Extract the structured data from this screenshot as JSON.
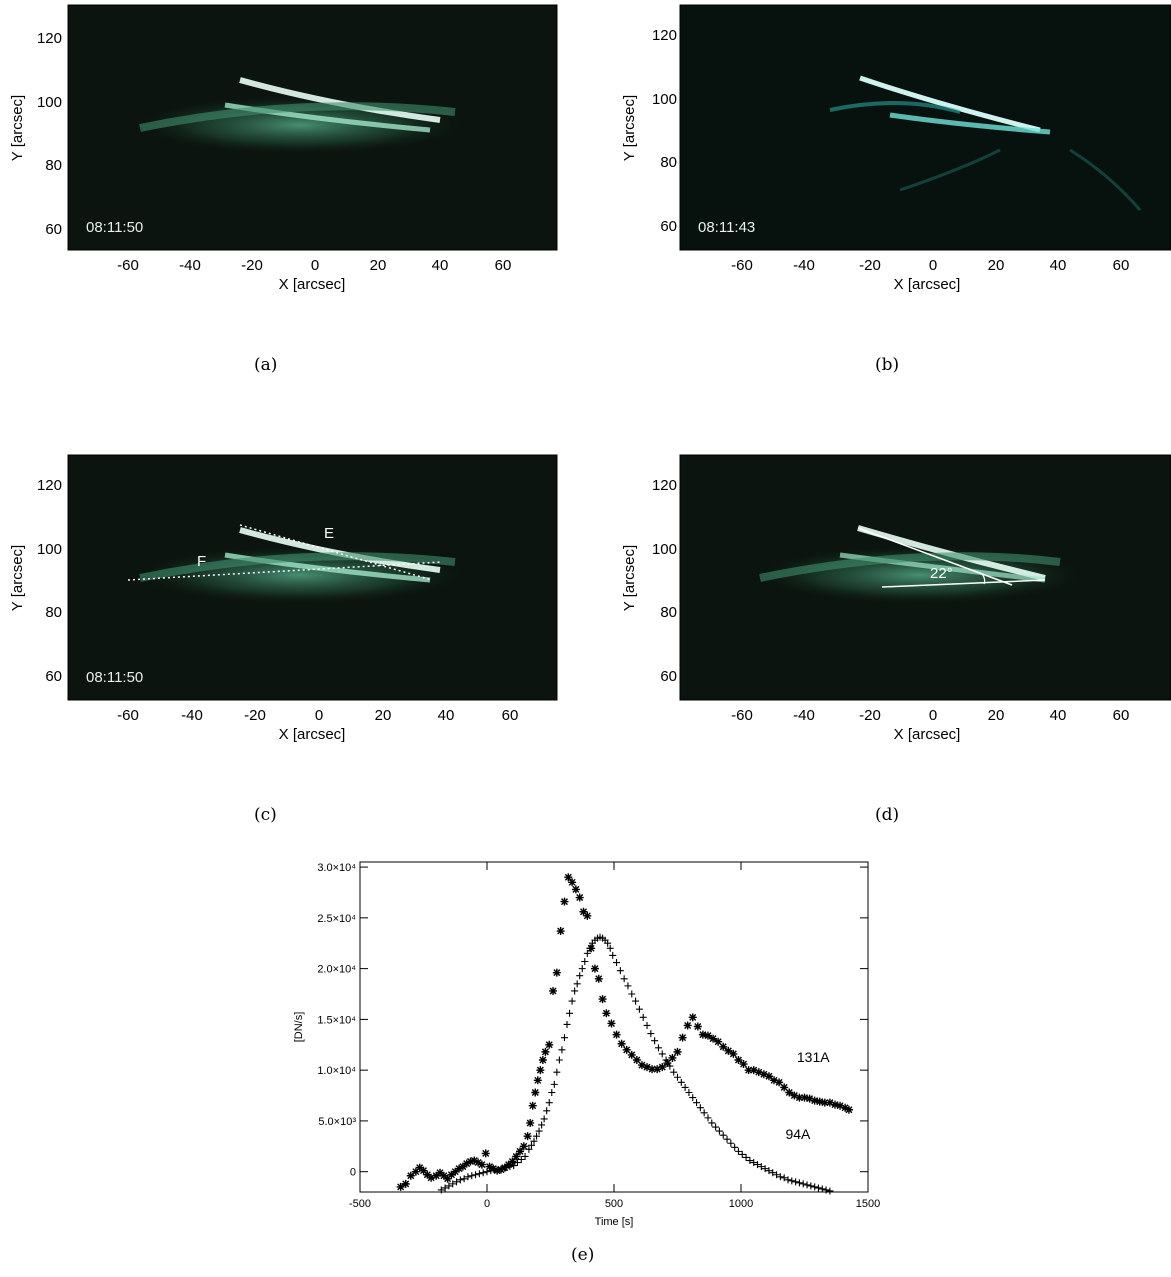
{
  "captions": {
    "a": "(a)",
    "b": "(b)",
    "c": "(c)",
    "d": "(d)",
    "e": "(e)"
  },
  "image_axes": {
    "xlabel": "X [arcsec]",
    "ylabel": "Y [arcsec]",
    "xticks": [
      "-60",
      "-40",
      "-20",
      "0",
      "20",
      "40",
      "60"
    ],
    "yticks": [
      "120",
      "100",
      "80",
      "60"
    ]
  },
  "panels": {
    "a": {
      "timestamp": "08:11:50"
    },
    "b": {
      "timestamp": "08:11:43"
    },
    "c": {
      "timestamp": "08:11:50",
      "label_e": "E",
      "label_f": "F"
    },
    "d": {
      "angle_label": "22°"
    }
  },
  "chart_data": {
    "type": "scatter",
    "xlabel": "Time [s]",
    "ylabel": "[DN/s]",
    "xlim": [
      -500,
      1500
    ],
    "ylim": [
      -2000,
      30500
    ],
    "xticks": [
      "-500",
      "0",
      "500",
      "1000",
      "1500"
    ],
    "yticks": [
      {
        "value": 0,
        "label": "0"
      },
      {
        "value": 5000,
        "label": "5.0×10³"
      },
      {
        "value": 10000,
        "label": "1.0×10⁴"
      },
      {
        "value": 15000,
        "label": "1.5×10⁴"
      },
      {
        "value": 20000,
        "label": "2.0×10⁴"
      },
      {
        "value": 25000,
        "label": "2.5×10⁴"
      },
      {
        "value": 30000,
        "label": "3.0×10⁴"
      }
    ],
    "series": [
      {
        "name": "131A",
        "marker": "asterisk",
        "points": [
          [
            -340,
            -1500
          ],
          [
            -320,
            -1200
          ],
          [
            -300,
            -400
          ],
          [
            -280,
            0
          ],
          [
            -265,
            400
          ],
          [
            -250,
            100
          ],
          [
            -235,
            -300
          ],
          [
            -220,
            -600
          ],
          [
            -200,
            -400
          ],
          [
            -185,
            -100
          ],
          [
            -170,
            -400
          ],
          [
            -155,
            -700
          ],
          [
            -140,
            -300
          ],
          [
            -125,
            0
          ],
          [
            -110,
            300
          ],
          [
            -95,
            500
          ],
          [
            -80,
            800
          ],
          [
            -65,
            1000
          ],
          [
            -50,
            1100
          ],
          [
            -35,
            900
          ],
          [
            -20,
            700
          ],
          [
            -5,
            1800
          ],
          [
            10,
            500
          ],
          [
            25,
            300
          ],
          [
            40,
            100
          ],
          [
            55,
            200
          ],
          [
            70,
            400
          ],
          [
            85,
            700
          ],
          [
            100,
            1000
          ],
          [
            115,
            1500
          ],
          [
            130,
            2000
          ],
          [
            145,
            2500
          ],
          [
            160,
            3500
          ],
          [
            170,
            4800
          ],
          [
            180,
            6500
          ],
          [
            190,
            7800
          ],
          [
            200,
            9000
          ],
          [
            210,
            10000
          ],
          [
            220,
            11000
          ],
          [
            230,
            11800
          ],
          [
            245,
            12500
          ],
          [
            260,
            17800
          ],
          [
            275,
            19600
          ],
          [
            290,
            23700
          ],
          [
            305,
            26600
          ],
          [
            320,
            29000
          ],
          [
            335,
            28500
          ],
          [
            350,
            27800
          ],
          [
            365,
            27000
          ],
          [
            380,
            25600
          ],
          [
            395,
            25200
          ],
          [
            410,
            22000
          ],
          [
            425,
            20000
          ],
          [
            440,
            19000
          ],
          [
            455,
            17000
          ],
          [
            470,
            15600
          ],
          [
            490,
            14600
          ],
          [
            510,
            13500
          ],
          [
            530,
            12600
          ],
          [
            550,
            12000
          ],
          [
            570,
            11500
          ],
          [
            590,
            11000
          ],
          [
            610,
            10500
          ],
          [
            630,
            10300
          ],
          [
            650,
            10100
          ],
          [
            670,
            10100
          ],
          [
            690,
            10300
          ],
          [
            710,
            10700
          ],
          [
            730,
            11200
          ],
          [
            750,
            11800
          ],
          [
            770,
            13200
          ],
          [
            790,
            14400
          ],
          [
            810,
            15200
          ],
          [
            830,
            14300
          ],
          [
            850,
            13500
          ],
          [
            870,
            13400
          ],
          [
            890,
            13100
          ],
          [
            910,
            12800
          ],
          [
            930,
            12300
          ],
          [
            950,
            11900
          ],
          [
            970,
            11600
          ],
          [
            990,
            11000
          ],
          [
            1010,
            10600
          ],
          [
            1030,
            10000
          ],
          [
            1050,
            10000
          ],
          [
            1070,
            9800
          ],
          [
            1090,
            9600
          ],
          [
            1110,
            9400
          ],
          [
            1130,
            9000
          ],
          [
            1150,
            8800
          ],
          [
            1170,
            8300
          ],
          [
            1190,
            7800
          ],
          [
            1210,
            7500
          ],
          [
            1230,
            7300
          ],
          [
            1250,
            7300
          ],
          [
            1270,
            7200
          ],
          [
            1290,
            7000
          ],
          [
            1310,
            6900
          ],
          [
            1330,
            6800
          ],
          [
            1350,
            6800
          ],
          [
            1370,
            6600
          ],
          [
            1390,
            6500
          ],
          [
            1410,
            6300
          ],
          [
            1425,
            6100
          ]
        ]
      },
      {
        "name": "94A",
        "marker": "plus",
        "points": [
          [
            -180,
            -1800
          ],
          [
            -165,
            -1600
          ],
          [
            -150,
            -1400
          ],
          [
            -135,
            -1200
          ],
          [
            -120,
            -1000
          ],
          [
            -105,
            -800
          ],
          [
            -90,
            -700
          ],
          [
            -75,
            -500
          ],
          [
            -60,
            -400
          ],
          [
            -45,
            -300
          ],
          [
            -30,
            -200
          ],
          [
            -15,
            -100
          ],
          [
            0,
            0
          ],
          [
            15,
            100
          ],
          [
            30,
            200
          ],
          [
            45,
            200
          ],
          [
            60,
            300
          ],
          [
            75,
            400
          ],
          [
            90,
            500
          ],
          [
            105,
            600
          ],
          [
            120,
            900
          ],
          [
            135,
            1200
          ],
          [
            150,
            1500
          ],
          [
            165,
            2200
          ],
          [
            175,
            2600
          ],
          [
            185,
            3000
          ],
          [
            195,
            3500
          ],
          [
            205,
            4000
          ],
          [
            215,
            4600
          ],
          [
            225,
            5200
          ],
          [
            235,
            6000
          ],
          [
            245,
            6800
          ],
          [
            255,
            7800
          ],
          [
            265,
            8600
          ],
          [
            275,
            9800
          ],
          [
            285,
            11000
          ],
          [
            295,
            12000
          ],
          [
            305,
            13200
          ],
          [
            315,
            14500
          ],
          [
            325,
            15600
          ],
          [
            335,
            16800
          ],
          [
            345,
            17800
          ],
          [
            355,
            18500
          ],
          [
            365,
            19300
          ],
          [
            375,
            20000
          ],
          [
            385,
            20700
          ],
          [
            395,
            21500
          ],
          [
            405,
            22000
          ],
          [
            415,
            22500
          ],
          [
            425,
            22800
          ],
          [
            435,
            23000
          ],
          [
            445,
            23100
          ],
          [
            455,
            23000
          ],
          [
            465,
            22800
          ],
          [
            475,
            22500
          ],
          [
            485,
            22000
          ],
          [
            495,
            21300
          ],
          [
            510,
            20600
          ],
          [
            525,
            19800
          ],
          [
            540,
            19000
          ],
          [
            555,
            18300
          ],
          [
            570,
            17500
          ],
          [
            585,
            16800
          ],
          [
            600,
            16000
          ],
          [
            615,
            15200
          ],
          [
            630,
            14400
          ],
          [
            645,
            13600
          ],
          [
            660,
            12900
          ],
          [
            675,
            12200
          ],
          [
            690,
            11600
          ],
          [
            705,
            11000
          ],
          [
            720,
            10400
          ],
          [
            735,
            9800
          ],
          [
            750,
            9300
          ],
          [
            765,
            8800
          ],
          [
            780,
            8300
          ],
          [
            795,
            7800
          ],
          [
            810,
            7300
          ],
          [
            825,
            6800
          ],
          [
            840,
            6300
          ],
          [
            855,
            5800
          ],
          [
            870,
            5300
          ],
          [
            885,
            4800
          ],
          [
            900,
            4400
          ],
          [
            915,
            4000
          ],
          [
            930,
            3600
          ],
          [
            945,
            3200
          ],
          [
            960,
            2800
          ],
          [
            975,
            2400
          ],
          [
            990,
            2000
          ],
          [
            1005,
            1700
          ],
          [
            1020,
            1400
          ],
          [
            1035,
            1100
          ],
          [
            1050,
            900
          ],
          [
            1065,
            700
          ],
          [
            1080,
            500
          ],
          [
            1095,
            300
          ],
          [
            1110,
            100
          ],
          [
            1125,
            -100
          ],
          [
            1140,
            -300
          ],
          [
            1155,
            -500
          ],
          [
            1170,
            -600
          ],
          [
            1185,
            -800
          ],
          [
            1200,
            -900
          ],
          [
            1215,
            -1000
          ],
          [
            1230,
            -1100
          ],
          [
            1245,
            -1200
          ],
          [
            1260,
            -1300
          ],
          [
            1275,
            -1400
          ],
          [
            1290,
            -1500
          ],
          [
            1305,
            -1600
          ],
          [
            1320,
            -1700
          ],
          [
            1335,
            -1800
          ],
          [
            1350,
            -1900
          ]
        ]
      }
    ],
    "annotations": [
      {
        "text": "131A",
        "x": 1220,
        "y": 10800
      },
      {
        "text": "94A",
        "x": 1175,
        "y": 3200
      }
    ]
  }
}
